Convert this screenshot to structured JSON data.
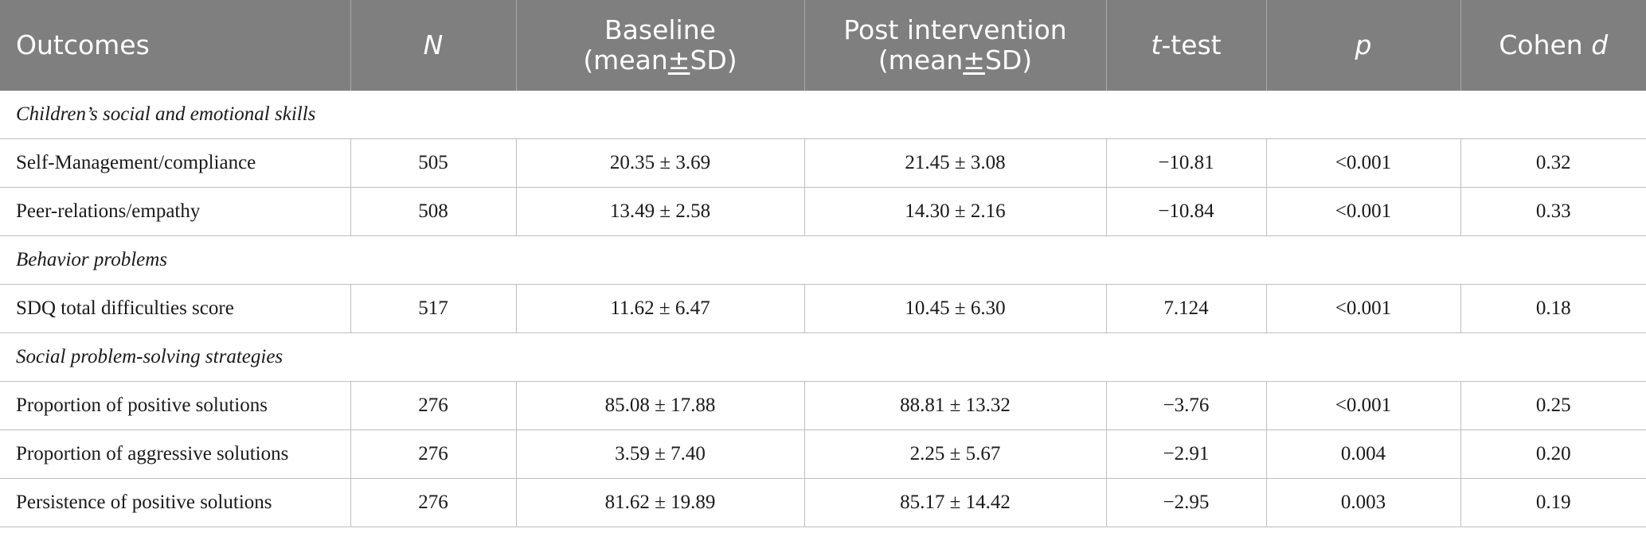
{
  "header": {
    "outcomes": "Outcomes",
    "n": "N",
    "baseline_line1": "Baseline",
    "baseline_line2_pre": "(mean",
    "baseline_pm": "±",
    "baseline_line2_post": "SD)",
    "post_line1": "Post intervention",
    "post_line2_pre": "(mean",
    "post_pm": "±",
    "post_line2_post": "SD)",
    "ttest_t": "t",
    "ttest_rest": "-test",
    "p": "p",
    "cohen_pre": "Cohen ",
    "cohen_d": "d"
  },
  "sections": [
    {
      "title": "Children’s social and emotional skills",
      "rows": [
        {
          "outcome": "Self-Management/compliance",
          "n": "505",
          "baseline": "20.35 ± 3.69",
          "post": "21.45 ± 3.08",
          "t": "−10.81",
          "p": "<0.001",
          "d": "0.32"
        },
        {
          "outcome": "Peer-relations/empathy",
          "n": "508",
          "baseline": "13.49 ± 2.58",
          "post": "14.30 ± 2.16",
          "t": "−10.84",
          "p": "<0.001",
          "d": "0.33"
        }
      ]
    },
    {
      "title": "Behavior problems",
      "rows": [
        {
          "outcome": "SDQ total difficulties score",
          "n": "517",
          "baseline": "11.62 ± 6.47",
          "post": "10.45 ± 6.30",
          "t": "7.124",
          "p": "<0.001",
          "d": "0.18"
        }
      ]
    },
    {
      "title": "Social problem-solving strategies",
      "rows": [
        {
          "outcome": "Proportion of positive solutions",
          "n": "276",
          "baseline": "85.08 ± 17.88",
          "post": "88.81 ± 13.32",
          "t": "−3.76",
          "p": "<0.001",
          "d": "0.25"
        },
        {
          "outcome": "Proportion of aggressive solutions",
          "n": "276",
          "baseline": "3.59 ± 7.40",
          "post": "2.25 ± 5.67",
          "t": "−2.91",
          "p": "0.004",
          "d": "0.20"
        },
        {
          "outcome": "Persistence of positive solutions",
          "n": "276",
          "baseline": "81.62 ± 19.89",
          "post": "85.17 ± 14.42",
          "t": "−2.95",
          "p": "0.003",
          "d": "0.19"
        }
      ]
    }
  ]
}
